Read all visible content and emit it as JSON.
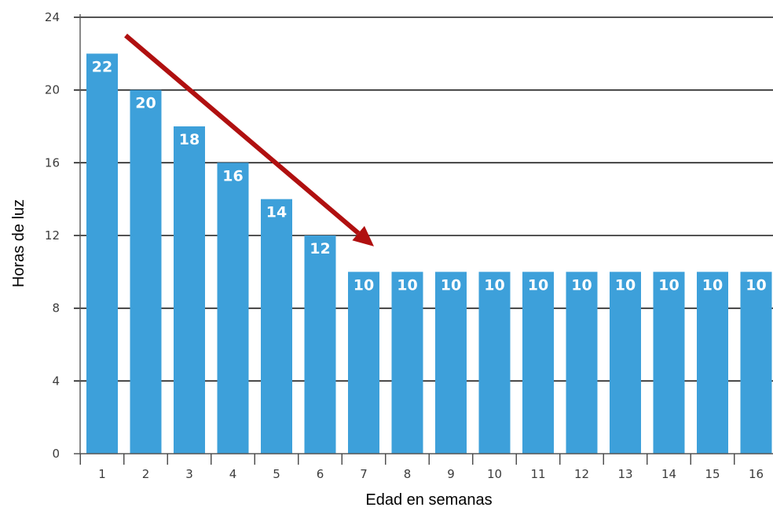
{
  "chart_data": {
    "type": "bar",
    "title": "",
    "xlabel": "Edad en semanas",
    "ylabel": "Horas de luz",
    "categories": [
      "1",
      "2",
      "3",
      "4",
      "5",
      "6",
      "7",
      "8",
      "9",
      "10",
      "11",
      "12",
      "13",
      "14",
      "15",
      "16"
    ],
    "values": [
      22,
      20,
      18,
      16,
      14,
      12,
      10,
      10,
      10,
      10,
      10,
      10,
      10,
      10,
      10,
      10
    ],
    "ylim": [
      0,
      24
    ],
    "yticks": [
      0,
      4,
      8,
      12,
      16,
      20,
      24
    ],
    "grid": true,
    "legend": "none",
    "bar_color": "#3da0da",
    "annotation": {
      "type": "arrow",
      "color": "#b01010",
      "from": {
        "x": "1",
        "y": 23
      },
      "to": {
        "x": "7",
        "y": 11.4
      }
    }
  }
}
